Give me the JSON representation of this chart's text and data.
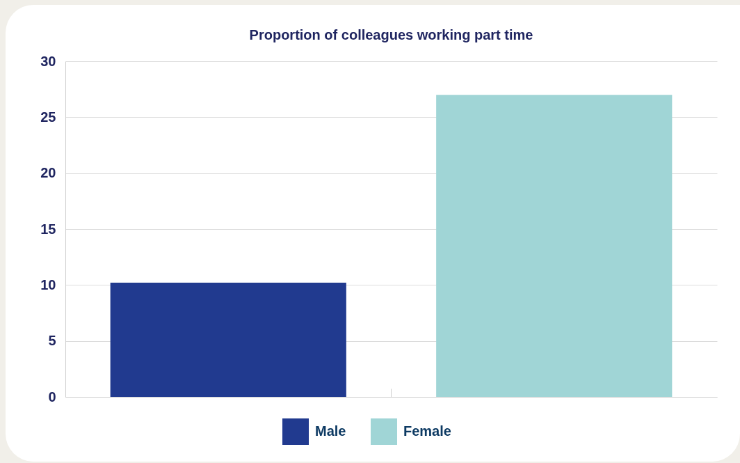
{
  "chart_data": {
    "type": "bar",
    "title": "Proportion of colleagues working part time",
    "categories": [
      null,
      null
    ],
    "series": [
      {
        "name": "Male",
        "color": "#213a8f",
        "values": [
          10.2,
          null
        ]
      },
      {
        "name": "Female",
        "color": "#a0d5d6",
        "values": [
          null,
          27
        ]
      }
    ],
    "ylim": [
      0,
      30
    ],
    "yticks": [
      0,
      5,
      10,
      15,
      20,
      25,
      30
    ],
    "grid": "y",
    "legend": "bottom",
    "tick_labels": "y"
  }
}
